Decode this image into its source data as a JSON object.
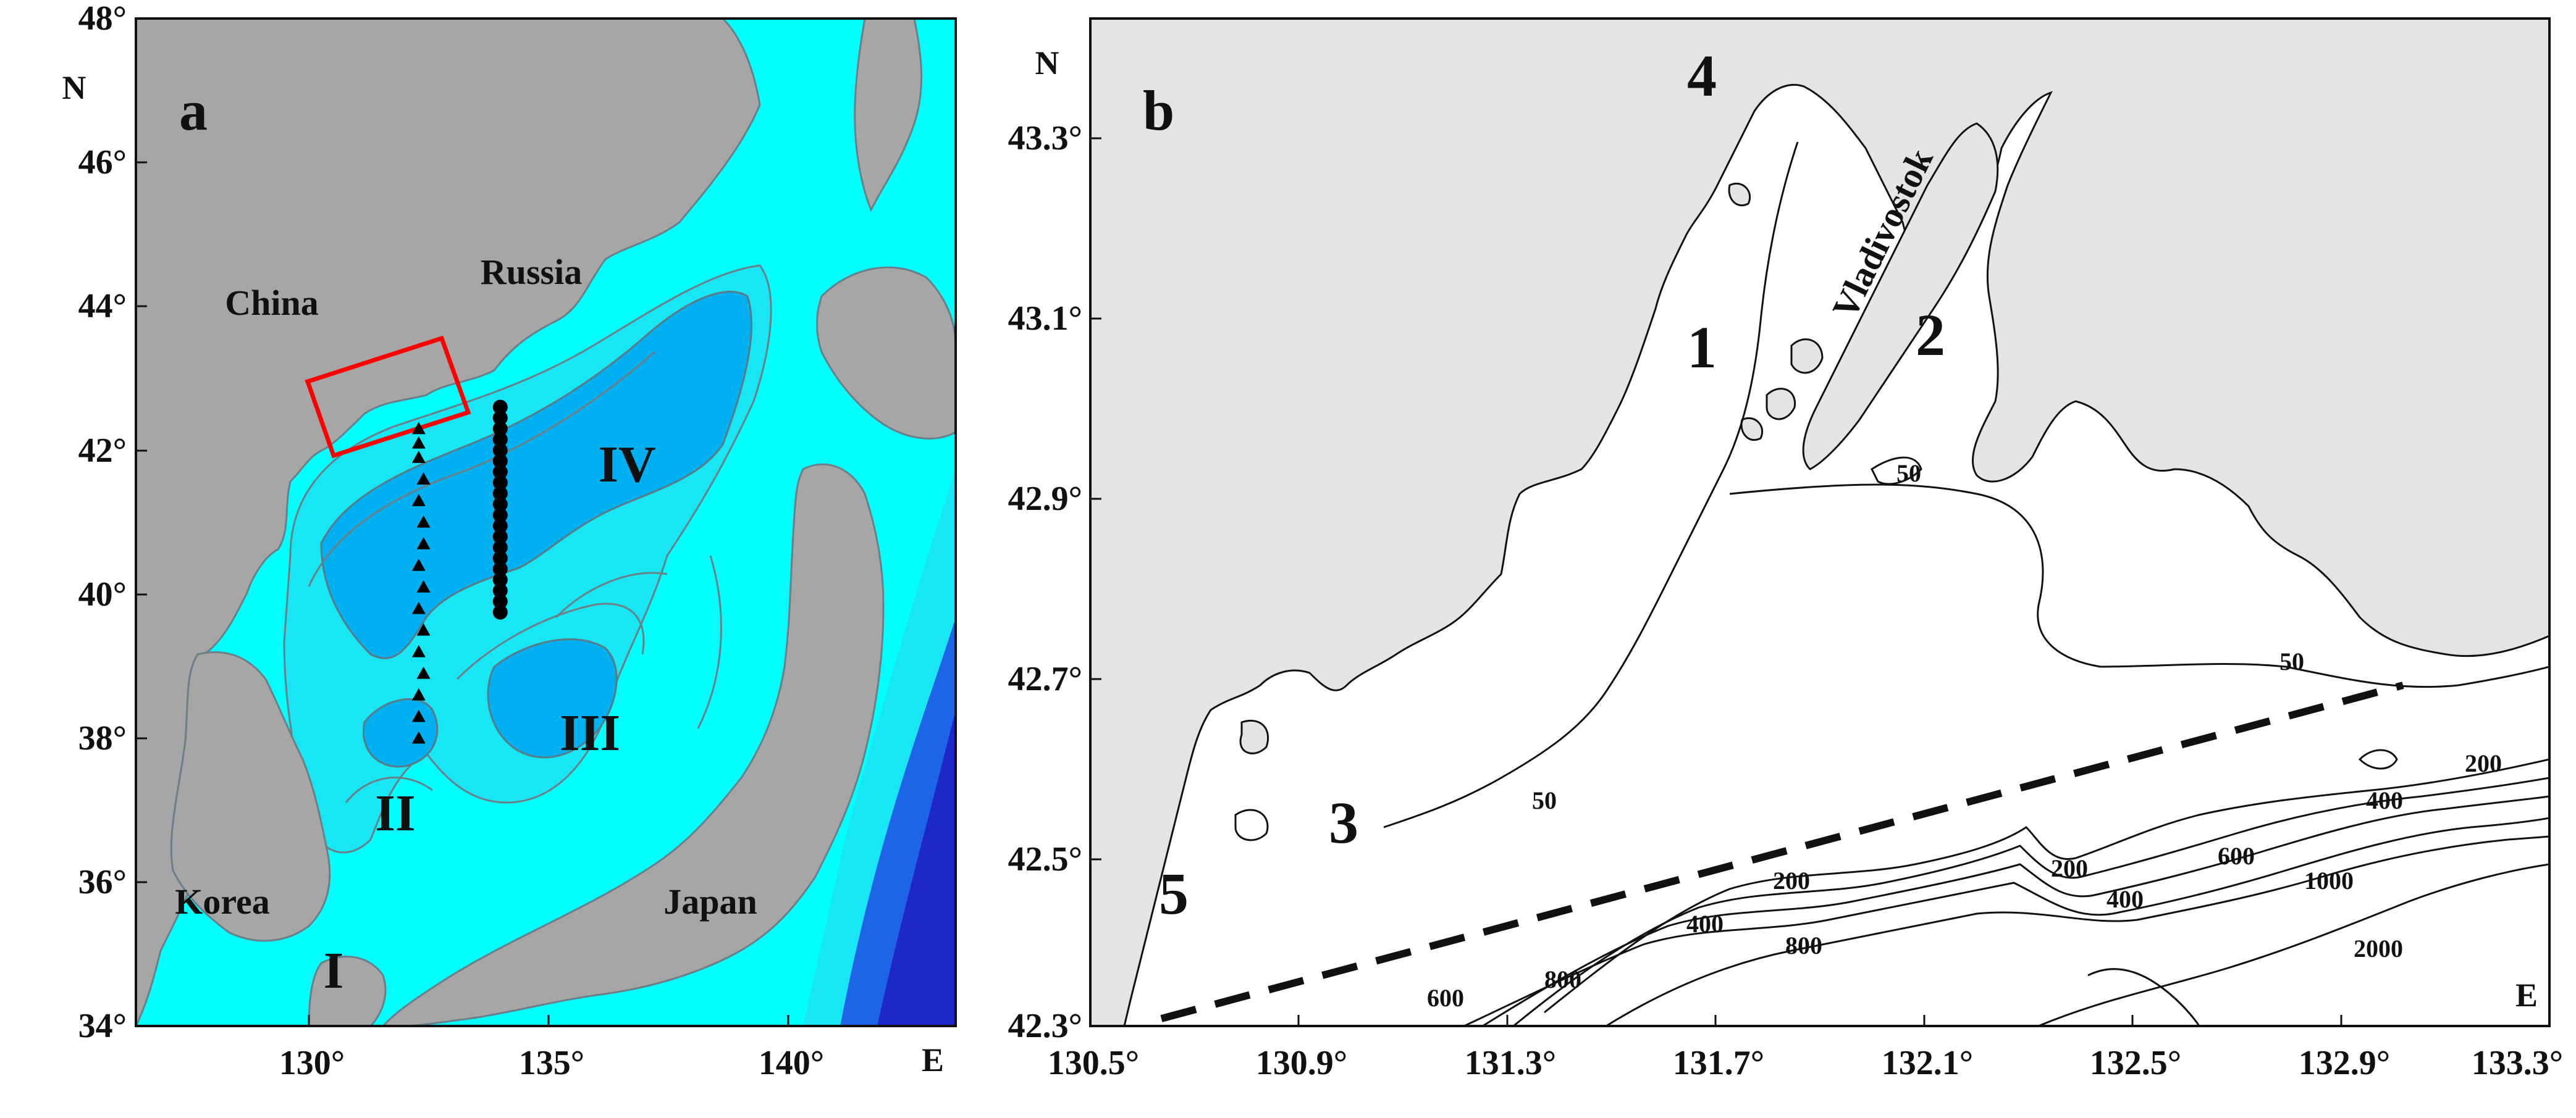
{
  "colors": {
    "land_a": "#a6a6a6",
    "shelf": "#00ffff",
    "slope": "#19e6f5",
    "basin": "#00b0f0",
    "deep": "#1e64e6",
    "deepest": "#1e28c8",
    "land_b": "#e4e4e4",
    "sea_b": "#ffffff",
    "station_box": "#ff0000"
  },
  "panel_a": {
    "letter": "a",
    "lat_ticks": [
      "48°",
      "46°",
      "44°",
      "42°",
      "40°",
      "38°",
      "36°",
      "34°"
    ],
    "lon_ticks": [
      "130°",
      "135°",
      "140°"
    ],
    "north_label": "N",
    "east_label": "E",
    "labels": {
      "china": "China",
      "russia": "Russia",
      "korea": "Korea",
      "japan": "Japan"
    },
    "regions": [
      "I",
      "II",
      "III",
      "IV"
    ],
    "transect_triangles": [
      [
        42.3,
        132.3
      ],
      [
        42.1,
        132.3
      ],
      [
        41.9,
        132.3
      ],
      [
        41.6,
        132.4
      ],
      [
        41.3,
        132.3
      ],
      [
        41.0,
        132.4
      ],
      [
        40.7,
        132.4
      ],
      [
        40.4,
        132.3
      ],
      [
        40.1,
        132.4
      ],
      [
        39.8,
        132.3
      ],
      [
        39.5,
        132.4
      ],
      [
        39.2,
        132.3
      ],
      [
        38.9,
        132.4
      ],
      [
        38.6,
        132.3
      ],
      [
        38.3,
        132.3
      ],
      [
        38.0,
        132.3
      ]
    ],
    "transect_circles": [
      [
        42.6,
        134.0
      ],
      [
        42.45,
        134.0
      ],
      [
        42.3,
        134.0
      ],
      [
        42.15,
        134.0
      ],
      [
        42.0,
        134.0
      ],
      [
        41.85,
        134.0
      ],
      [
        41.7,
        134.0
      ],
      [
        41.55,
        134.0
      ],
      [
        41.4,
        134.0
      ],
      [
        41.25,
        134.0
      ],
      [
        41.1,
        134.0
      ],
      [
        40.95,
        134.0
      ],
      [
        40.8,
        134.0
      ],
      [
        40.65,
        134.0
      ],
      [
        40.5,
        134.0
      ],
      [
        40.35,
        134.0
      ],
      [
        40.2,
        134.0
      ],
      [
        40.05,
        134.0
      ],
      [
        39.9,
        134.0
      ],
      [
        39.75,
        134.0
      ]
    ]
  },
  "panel_b": {
    "letter": "b",
    "lat_ticks": [
      "43.3°",
      "43.1°",
      "42.9°",
      "42.7°",
      "42.5°",
      "42.3°"
    ],
    "lon_ticks": [
      "130.5°",
      "130.9°",
      "131.3°",
      "131.7°",
      "132.1°",
      "132.5°",
      "132.9°",
      "133.3°"
    ],
    "north_label": "N",
    "east_label": "E",
    "city": "Vladivostok",
    "areas": [
      "1",
      "2",
      "3",
      "4",
      "5"
    ],
    "contour_labels": [
      "50",
      "50",
      "50",
      "200",
      "200",
      "200",
      "400",
      "400",
      "400",
      "600",
      "600",
      "800",
      "800",
      "1000",
      "2000"
    ]
  }
}
